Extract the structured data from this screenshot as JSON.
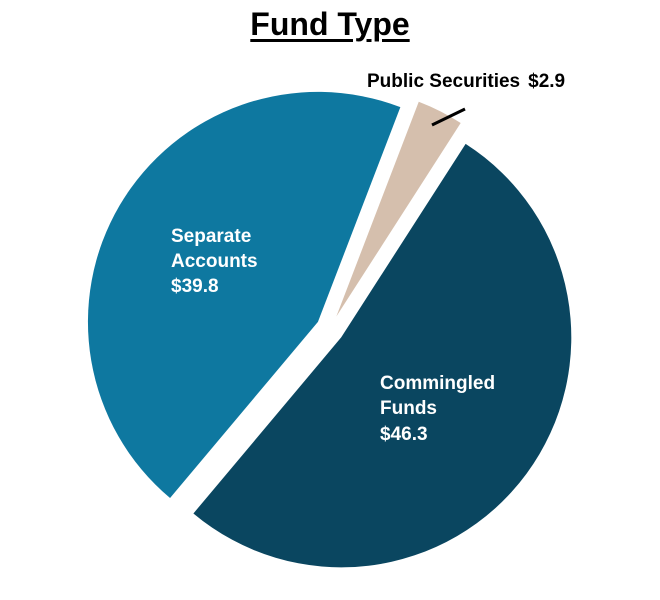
{
  "chart_data": {
    "type": "pie",
    "title": "Fund Type",
    "slices": [
      {
        "name": "Public Securities",
        "value": 2.9,
        "value_label": "$2.9",
        "color": "#d5bfad"
      },
      {
        "name": "Commingled Funds",
        "value": 46.3,
        "value_label": "$46.3",
        "color": "#0a4660"
      },
      {
        "name": "Separate Accounts",
        "value": 39.8,
        "value_label": "$39.8",
        "color": "#0e78a0"
      }
    ]
  }
}
